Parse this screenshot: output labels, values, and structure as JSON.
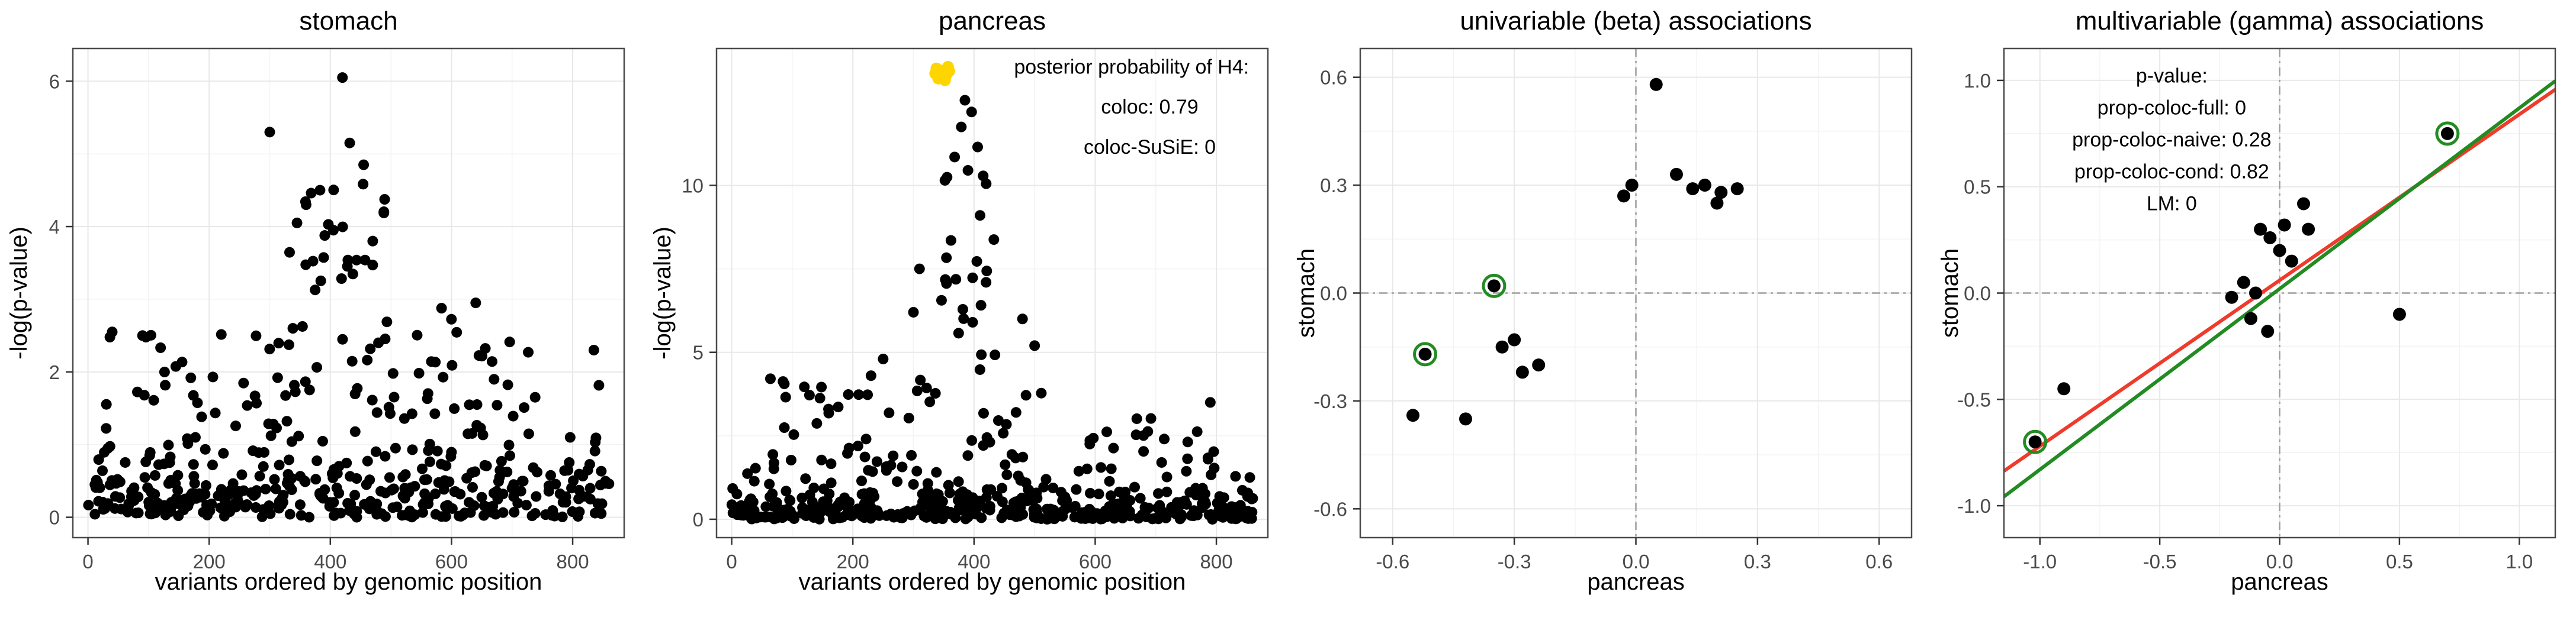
{
  "page": {
    "background": "#ffffff"
  },
  "colors": {
    "point": "#000000",
    "highlight_yellow": "#FFD500",
    "circle_green": "#228B22",
    "line_red": "#EF3B2C",
    "line_green": "#228B22",
    "zero_line_gray": "#9E9E9E",
    "panel_border": "#4A4A4A"
  },
  "chart_data": [
    {
      "type": "scatter",
      "title": "stomach",
      "xlabel": "variants ordered by genomic position",
      "ylabel": "-log(p-value)",
      "xlim": [
        -25,
        885
      ],
      "ylim": [
        -0.28,
        6.45
      ],
      "xticks": [
        0,
        200,
        400,
        600,
        800
      ],
      "yticks": [
        0,
        2,
        4,
        6
      ],
      "xtick_labels": [
        "0",
        "200",
        "400",
        "600",
        "800"
      ],
      "ytick_labels": [
        "0",
        "2",
        "4",
        "6"
      ],
      "point_color": "#000000",
      "point_r": 9,
      "grid": true,
      "generated": [
        {
          "seed": 101,
          "n": 400,
          "x": [
            0,
            860
          ],
          "dist": "exp",
          "scale": 0.5,
          "cap": 2.3
        },
        {
          "seed": 202,
          "n": 50,
          "x": [
            10,
            740
          ],
          "dist": "uniform",
          "range": [
            1.3,
            2.55
          ]
        },
        {
          "seed": 303,
          "n": 26,
          "x": [
            330,
            500
          ],
          "dist": "uniform",
          "range": [
            2.5,
            4.6
          ]
        },
        {
          "seed": 404,
          "n": 8,
          "x": [
            520,
            700
          ],
          "dist": "uniform",
          "range": [
            1.8,
            3.0
          ]
        }
      ],
      "points": [
        [
          420,
          6.05
        ],
        [
          300,
          5.3
        ],
        [
          432,
          5.15
        ],
        [
          455,
          4.85
        ],
        [
          383,
          4.5
        ],
        [
          360,
          4.3
        ],
        [
          345,
          4.05
        ],
        [
          405,
          3.95
        ],
        [
          470,
          3.8
        ],
        [
          640,
          2.95
        ],
        [
          835,
          2.3
        ],
        [
          40,
          2.55
        ],
        [
          90,
          2.5
        ]
      ]
    },
    {
      "type": "scatter",
      "title": "pancreas",
      "xlabel": "variants ordered by genomic position",
      "ylabel": "-log(p-value)",
      "xlim": [
        -25,
        885
      ],
      "ylim": [
        -0.55,
        14.1
      ],
      "xticks": [
        0,
        200,
        400,
        600,
        800
      ],
      "yticks": [
        0,
        5,
        10
      ],
      "xtick_labels": [
        "0",
        "200",
        "400",
        "600",
        "800"
      ],
      "ytick_labels": [
        "0",
        "5",
        "10"
      ],
      "point_color": "#000000",
      "point_r": 9,
      "grid": true,
      "generated": [
        {
          "seed": 111,
          "n": 430,
          "x": [
            0,
            860
          ],
          "dist": "exp",
          "scale": 0.42,
          "cap": 1.9
        },
        {
          "seed": 222,
          "n": 55,
          "x": [
            60,
            520
          ],
          "dist": "uniform",
          "range": [
            1.4,
            4.3
          ]
        },
        {
          "seed": 333,
          "n": 22,
          "x": [
            560,
            860
          ],
          "dist": "uniform",
          "range": [
            1.1,
            3.2
          ]
        },
        {
          "seed": 444,
          "n": 22,
          "x": [
            330,
            445
          ],
          "dist": "uniform",
          "range": [
            4.3,
            10.3
          ]
        }
      ],
      "points": [
        [
          385,
          12.55
        ],
        [
          396,
          12.2
        ],
        [
          379,
          11.75
        ],
        [
          406,
          11.15
        ],
        [
          368,
          10.85
        ],
        [
          390,
          10.45
        ],
        [
          352,
          10.15
        ],
        [
          420,
          10.05
        ],
        [
          310,
          7.5
        ],
        [
          300,
          6.2
        ],
        [
          480,
          6.0
        ],
        [
          500,
          5.2
        ],
        [
          790,
          3.5
        ],
        [
          250,
          4.8
        ],
        [
          230,
          4.3
        ]
      ],
      "extra_series": [
        {
          "name": "H4-highlighted-variants",
          "color": "#FFD500",
          "r": 10,
          "points": [
            [
              336,
              13.35
            ],
            [
              343,
              13.45
            ],
            [
              349,
              13.4
            ],
            [
              354,
              13.3
            ],
            [
              359,
              13.42
            ],
            [
              341,
              13.2
            ],
            [
              352,
              13.15
            ],
            [
              346,
              13.28
            ],
            [
              338,
              13.5
            ],
            [
              357,
              13.55
            ]
          ]
        }
      ],
      "annotations": [
        {
          "x": 660,
          "y": 13.35,
          "text": "posterior probability of H4:"
        },
        {
          "x": 690,
          "y": 12.15,
          "text": "coloc: 0.79"
        },
        {
          "x": 690,
          "y": 10.95,
          "text": "coloc-SuSiE: 0"
        }
      ]
    },
    {
      "type": "scatter",
      "title": "univariable (beta) associations",
      "xlabel": "pancreas",
      "ylabel": "stomach",
      "xlim": [
        -0.68,
        0.68
      ],
      "ylim": [
        -0.68,
        0.68
      ],
      "xticks": [
        -0.6,
        -0.3,
        0,
        0.3,
        0.6
      ],
      "yticks": [
        -0.6,
        -0.3,
        0,
        0.3,
        0.6
      ],
      "xtick_labels": [
        "-0.6",
        "-0.3",
        "0.0",
        "0.3",
        "0.6"
      ],
      "ytick_labels": [
        "-0.6",
        "-0.3",
        "0.0",
        "0.3",
        "0.6"
      ],
      "point_color": "#000000",
      "point_r": 11,
      "grid": true,
      "zero_lines": true,
      "points": [
        [
          -0.55,
          -0.34
        ],
        [
          -0.42,
          -0.35
        ],
        [
          -0.33,
          -0.15
        ],
        [
          -0.3,
          -0.13
        ],
        [
          -0.28,
          -0.22
        ],
        [
          -0.24,
          -0.2
        ],
        [
          0.05,
          0.58
        ],
        [
          -0.03,
          0.27
        ],
        [
          -0.01,
          0.3
        ],
        [
          0.1,
          0.33
        ],
        [
          0.14,
          0.29
        ],
        [
          0.17,
          0.3
        ],
        [
          0.2,
          0.25
        ],
        [
          0.21,
          0.28
        ],
        [
          0.25,
          0.29
        ]
      ],
      "circled": [
        [
          -0.52,
          -0.17
        ],
        [
          -0.35,
          0.02
        ]
      ],
      "circle_color": "#228B22"
    },
    {
      "type": "scatter",
      "title": "multivariable (gamma) associations",
      "xlabel": "pancreas",
      "ylabel": "stomach",
      "xlim": [
        -1.15,
        1.15
      ],
      "ylim": [
        -1.15,
        1.15
      ],
      "xticks": [
        -1,
        -0.5,
        0,
        0.5,
        1
      ],
      "yticks": [
        -1,
        -0.5,
        0,
        0.5,
        1
      ],
      "xtick_labels": [
        "-1.0",
        "-0.5",
        "0.0",
        "0.5",
        "1.0"
      ],
      "ytick_labels": [
        "-1.0",
        "-0.5",
        "0.0",
        "0.5",
        "1.0"
      ],
      "point_color": "#000000",
      "point_r": 11,
      "grid": true,
      "zero_lines": true,
      "lines": [
        {
          "name": "red-fit-line",
          "slope": 0.78,
          "intercept": 0.06,
          "color": "#EF3B2C",
          "width": 6
        },
        {
          "name": "green-fit-line",
          "slope": 0.85,
          "intercept": 0.02,
          "color": "#228B22",
          "width": 6
        }
      ],
      "points": [
        [
          -0.9,
          -0.45
        ],
        [
          -0.2,
          -0.02
        ],
        [
          -0.15,
          0.05
        ],
        [
          -0.12,
          -0.12
        ],
        [
          -0.1,
          0.0
        ],
        [
          -0.08,
          0.3
        ],
        [
          -0.04,
          0.26
        ],
        [
          0.0,
          0.2
        ],
        [
          0.02,
          0.32
        ],
        [
          0.05,
          0.15
        ],
        [
          0.1,
          0.42
        ],
        [
          0.12,
          0.3
        ],
        [
          0.5,
          -0.1
        ],
        [
          -0.05,
          -0.18
        ]
      ],
      "circled": [
        [
          -1.02,
          -0.7
        ],
        [
          0.7,
          0.75
        ]
      ],
      "circle_color": "#228B22",
      "annotations": [
        {
          "x": -0.45,
          "y": 0.99,
          "text": "p-value:"
        },
        {
          "x": -0.45,
          "y": 0.84,
          "text": "prop-coloc-full: 0"
        },
        {
          "x": -0.45,
          "y": 0.69,
          "text": "prop-coloc-naive: 0.28"
        },
        {
          "x": -0.45,
          "y": 0.54,
          "text": "prop-coloc-cond: 0.82"
        },
        {
          "x": -0.45,
          "y": 0.39,
          "text": "LM: 0"
        }
      ]
    }
  ]
}
